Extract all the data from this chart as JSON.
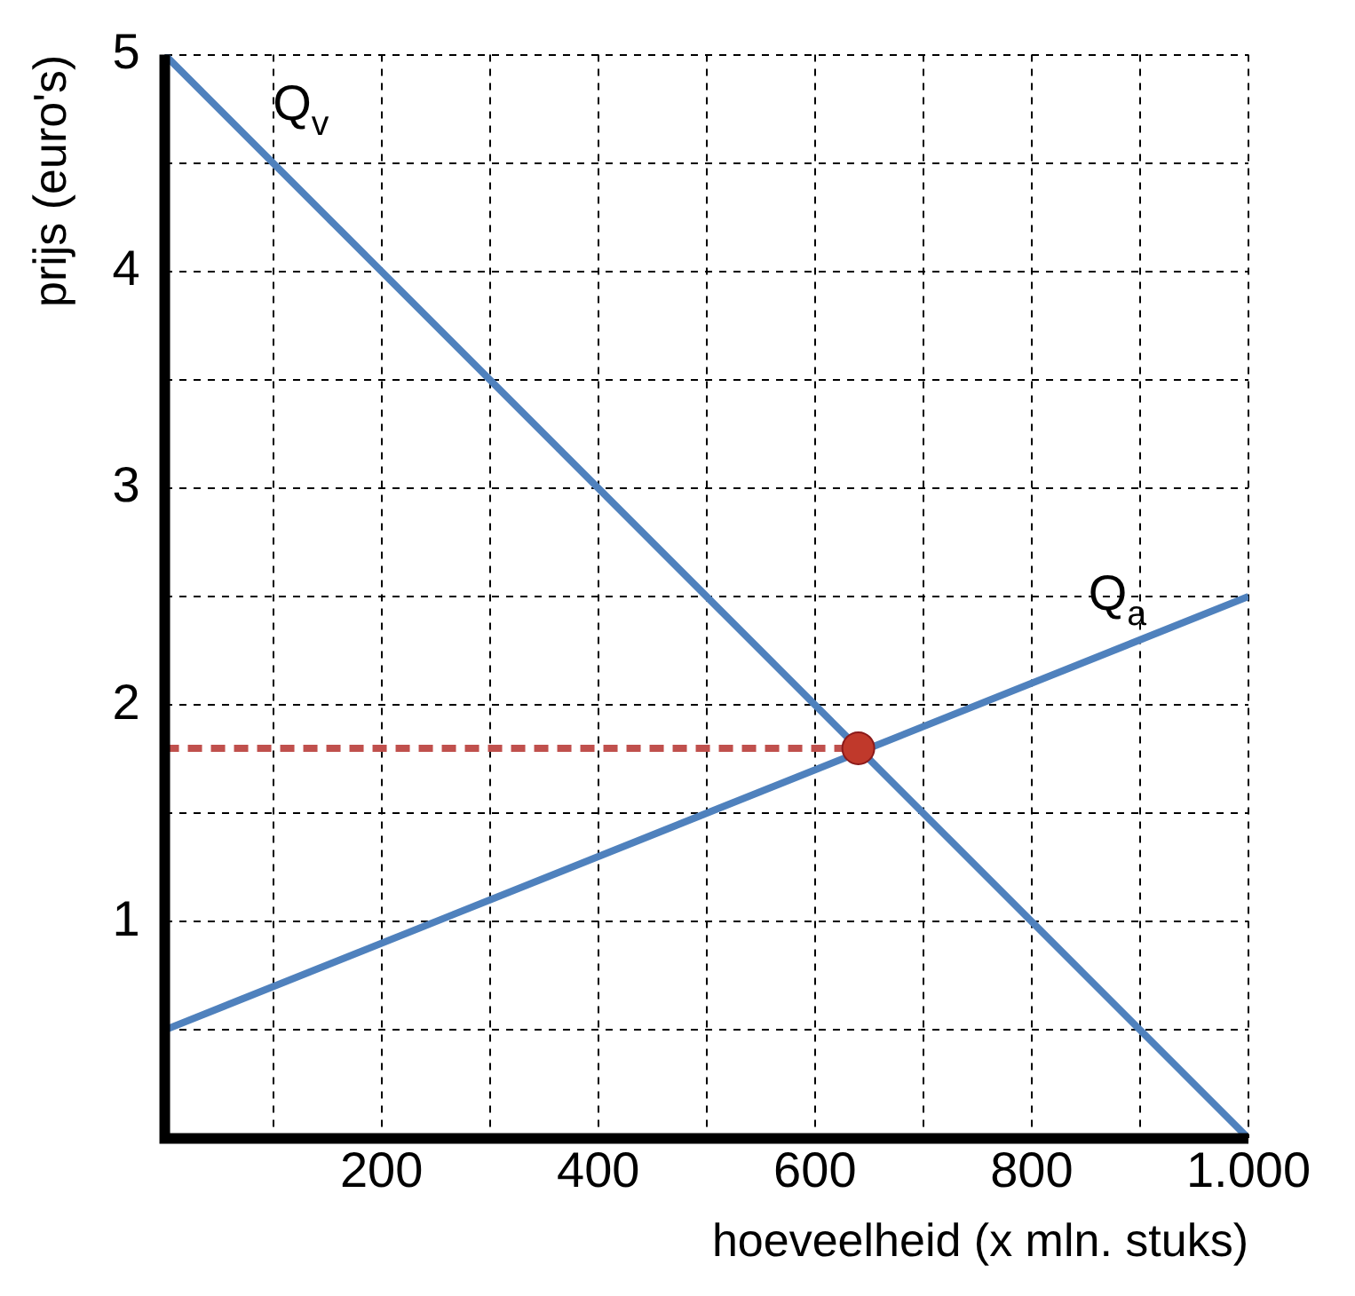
{
  "chart_data": {
    "type": "line",
    "xlabel": "hoeveelheid (x mln. stuks)",
    "ylabel": "prijs (euro's)",
    "series": [
      {
        "name": "Q$_{v}$",
        "color": "#4f81bd",
        "x": [
          0,
          1000
        ],
        "values": [
          5,
          0
        ]
      },
      {
        "name": "Q$_{a}$",
        "color": "#4f81bd",
        "x": [
          0,
          1000
        ],
        "values": [
          0.5,
          2.5
        ]
      },
      {
        "color": "#c0504d",
        "x": [
          0,
          640
        ],
        "values": [
          1.8,
          1.8
        ],
        "line_style": "dashed"
      },
      {
        "type": "scatter",
        "color": "#c0392b",
        "x": [
          640
        ],
        "values": [
          1.8
        ],
        "marker": "circle"
      }
    ],
    "xlim": [
      0,
      1000
    ],
    "ylim": [
      0,
      5
    ],
    "xticks": [
      {
        "value": 0,
        "label": null
      },
      {
        "value": 100,
        "label": null
      },
      200,
      {
        "value": 300,
        "label": null
      },
      400,
      {
        "value": 500,
        "label": null
      },
      600,
      {
        "value": 700,
        "label": null
      },
      800,
      {
        "value": 900,
        "label": null
      },
      {
        "value": 1000,
        "label": "1.000"
      }
    ],
    "yticks": [
      {
        "value": 0,
        "label": null
      },
      {
        "value": 0.5,
        "label": null
      },
      1,
      {
        "value": 1.5,
        "label": null
      },
      2,
      {
        "value": 2.5,
        "label": null
      },
      3,
      {
        "value": 3.5,
        "label": null
      },
      4,
      {
        "value": 4.5,
        "label": null
      },
      5
    ],
    "grid": true,
    "legend": false,
    "marker": "none",
    "line_style": "solid"
  }
}
